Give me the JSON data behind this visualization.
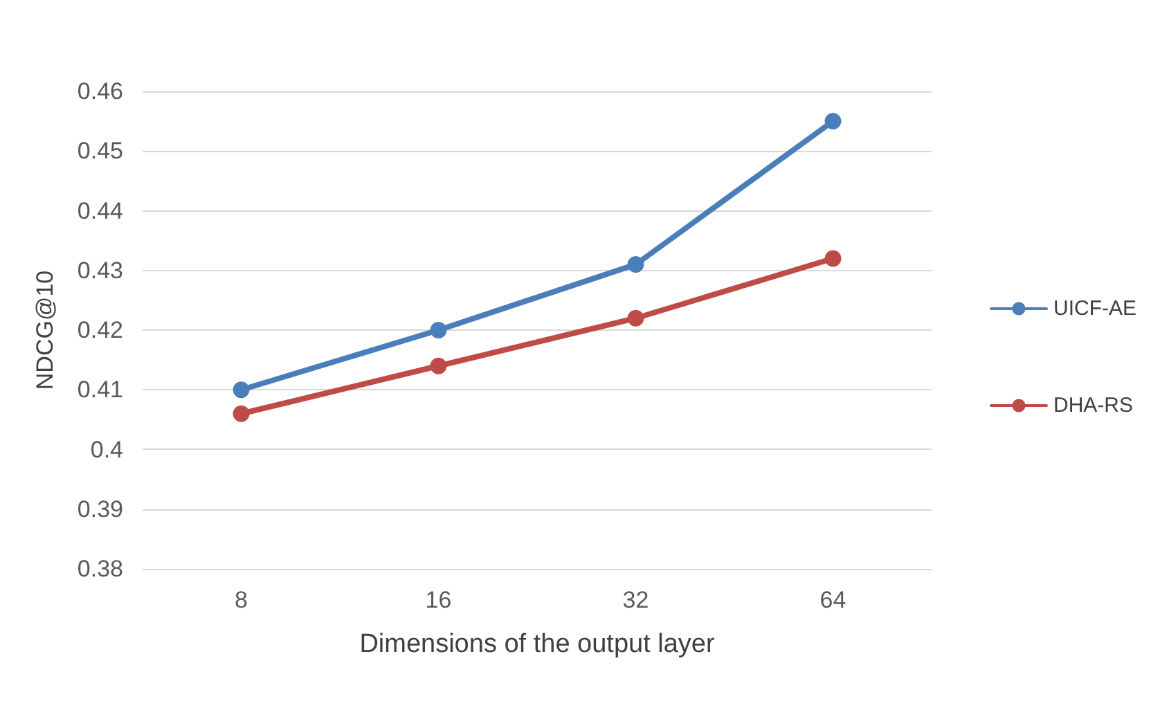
{
  "chart_data": {
    "type": "line",
    "xlabel": "Dimensions of the output layer",
    "ylabel": "NDCG@10",
    "categories": [
      "8",
      "16",
      "32",
      "64"
    ],
    "series": [
      {
        "name": "UICF-AE",
        "color": "#4a7ebb",
        "values": [
          0.41,
          0.42,
          0.431,
          0.455
        ]
      },
      {
        "name": "DHA-RS",
        "color": "#be4b48",
        "values": [
          0.406,
          0.414,
          0.422,
          0.432
        ]
      }
    ],
    "ylim": [
      0.38,
      0.46
    ],
    "yticks": [
      0.38,
      0.39,
      0.4,
      0.41,
      0.42,
      0.43,
      0.44,
      0.45,
      0.46
    ],
    "grid": "y",
    "legend": "right",
    "marker": "circle",
    "line_style": "solid"
  }
}
